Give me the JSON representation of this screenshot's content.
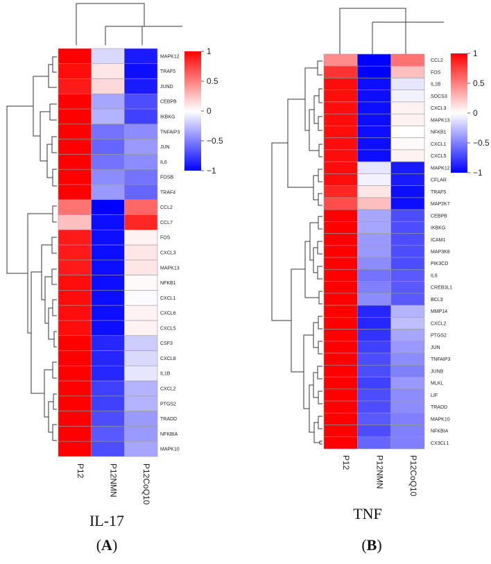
{
  "color_scale": {
    "low": "#0000ff",
    "mid": "#ffffff",
    "high": "#ff0000",
    "min": -1,
    "max": 1
  },
  "chart_data": [
    {
      "type": "heatmap",
      "title": "IL-17",
      "panel_letter_open": "(",
      "panel_letter": "A",
      "panel_letter_close": ")",
      "columns": [
        "P12",
        "P12NMN",
        "P12CoQ10"
      ],
      "rows": [
        "MAPK12",
        "TRAF5",
        "JUND",
        "CEBPB",
        "IKBKG",
        "TNFAIP3",
        "JUN",
        "IL6",
        "FOSB",
        "TRAF4",
        "CCL2",
        "CCL7",
        "FOS",
        "CXCL3",
        "MAPK13",
        "NFKB1",
        "CXCL1",
        "CXCL6",
        "CXCL5",
        "CSF3",
        "CXCL8",
        "IL1B",
        "CXCL2",
        "PTGS2",
        "TRADD",
        "NFKBIA",
        "MAPK10"
      ],
      "values": [
        [
          1.0,
          -0.15,
          -0.9
        ],
        [
          0.95,
          0.1,
          -0.95
        ],
        [
          0.9,
          0.15,
          -0.9
        ],
        [
          1.0,
          -0.35,
          -0.7
        ],
        [
          1.0,
          -0.3,
          -0.75
        ],
        [
          1.0,
          -0.55,
          -0.45
        ],
        [
          1.0,
          -0.6,
          -0.4
        ],
        [
          1.0,
          -0.55,
          -0.45
        ],
        [
          1.0,
          -0.45,
          -0.55
        ],
        [
          1.0,
          -0.4,
          -0.6
        ],
        [
          0.55,
          -1.0,
          0.6
        ],
        [
          0.25,
          -0.95,
          0.85
        ],
        [
          0.9,
          -0.95,
          0.05
        ],
        [
          0.9,
          -0.95,
          0.1
        ],
        [
          0.9,
          -0.95,
          0.1
        ],
        [
          0.95,
          -0.95,
          0.02
        ],
        [
          0.95,
          -0.95,
          -0.02
        ],
        [
          0.95,
          -0.95,
          0.05
        ],
        [
          0.95,
          -0.95,
          0.05
        ],
        [
          1.0,
          -0.85,
          -0.2
        ],
        [
          1.0,
          -0.85,
          -0.15
        ],
        [
          1.0,
          -0.85,
          -0.1
        ],
        [
          1.0,
          -0.75,
          -0.3
        ],
        [
          1.0,
          -0.75,
          -0.3
        ],
        [
          1.0,
          -0.7,
          -0.4
        ],
        [
          1.0,
          -0.65,
          -0.4
        ],
        [
          1.0,
          -0.7,
          -0.35
        ]
      ],
      "colorbar_ticks": [
        "1",
        "0.5",
        "0",
        "−0.5",
        "−1"
      ],
      "colorbar_tick_values": [
        1,
        0.5,
        0,
        -0.5,
        -1
      ]
    },
    {
      "type": "heatmap",
      "title": "TNF",
      "panel_letter_open": "(",
      "panel_letter": "B",
      "panel_letter_close": ")",
      "columns": [
        "P12",
        "P12NMN",
        "P12CoQ10"
      ],
      "rows": [
        "CCL2",
        "FOS",
        "IL1B",
        "SOCS3",
        "CXCL3",
        "MAPK13",
        "NFKB1",
        "CXCL1",
        "CXCL5",
        "MAPK12",
        "CFLAR",
        "TRAF5",
        "MAP2K7",
        "CEBPB",
        "IKBKG",
        "ICAM1",
        "MAP3K8",
        "PIK3CD",
        "IL6",
        "CREB3L1",
        "BCL3",
        "MMP14",
        "CXCL2",
        "PTGS2",
        "JUN",
        "TNFAIP3",
        "JUNB",
        "MLKL",
        "LIF",
        "TRADD",
        "MAPK10",
        "NFKBIA",
        "CX3CL1"
      ],
      "values": [
        [
          0.45,
          -1.0,
          0.55
        ],
        [
          0.8,
          -1.0,
          0.25
        ],
        [
          0.95,
          -0.95,
          -0.1
        ],
        [
          0.95,
          -0.95,
          -0.05
        ],
        [
          0.95,
          -0.95,
          0.05
        ],
        [
          0.95,
          -0.95,
          0.05
        ],
        [
          0.95,
          -0.95,
          0.0
        ],
        [
          0.95,
          -0.95,
          0.02
        ],
        [
          0.95,
          -0.95,
          0.05
        ],
        [
          0.95,
          -0.1,
          -0.9
        ],
        [
          0.95,
          -0.05,
          -0.9
        ],
        [
          0.85,
          0.1,
          -0.95
        ],
        [
          0.7,
          0.25,
          -0.95
        ],
        [
          1.0,
          -0.35,
          -0.7
        ],
        [
          1.0,
          -0.35,
          -0.7
        ],
        [
          1.0,
          -0.4,
          -0.7
        ],
        [
          1.0,
          -0.4,
          -0.7
        ],
        [
          1.0,
          -0.45,
          -0.7
        ],
        [
          1.0,
          -0.55,
          -0.65
        ],
        [
          1.0,
          -0.5,
          -0.65
        ],
        [
          1.0,
          -0.45,
          -0.65
        ],
        [
          1.0,
          -0.85,
          -0.3
        ],
        [
          1.0,
          -0.85,
          -0.25
        ],
        [
          1.0,
          -0.8,
          -0.35
        ],
        [
          1.0,
          -0.75,
          -0.4
        ],
        [
          1.0,
          -0.7,
          -0.45
        ],
        [
          1.0,
          -0.7,
          -0.5
        ],
        [
          1.0,
          -0.75,
          -0.4
        ],
        [
          1.0,
          -0.7,
          -0.45
        ],
        [
          1.0,
          -0.7,
          -0.45
        ],
        [
          1.0,
          -0.65,
          -0.5
        ],
        [
          1.0,
          -0.7,
          -0.5
        ],
        [
          1.0,
          -0.6,
          -0.5
        ]
      ],
      "colorbar_ticks": [
        "1",
        "0.5",
        "0",
        "−0.5",
        "−1"
      ],
      "colorbar_tick_values": [
        1,
        0.5,
        0,
        -0.5,
        -1
      ]
    }
  ]
}
